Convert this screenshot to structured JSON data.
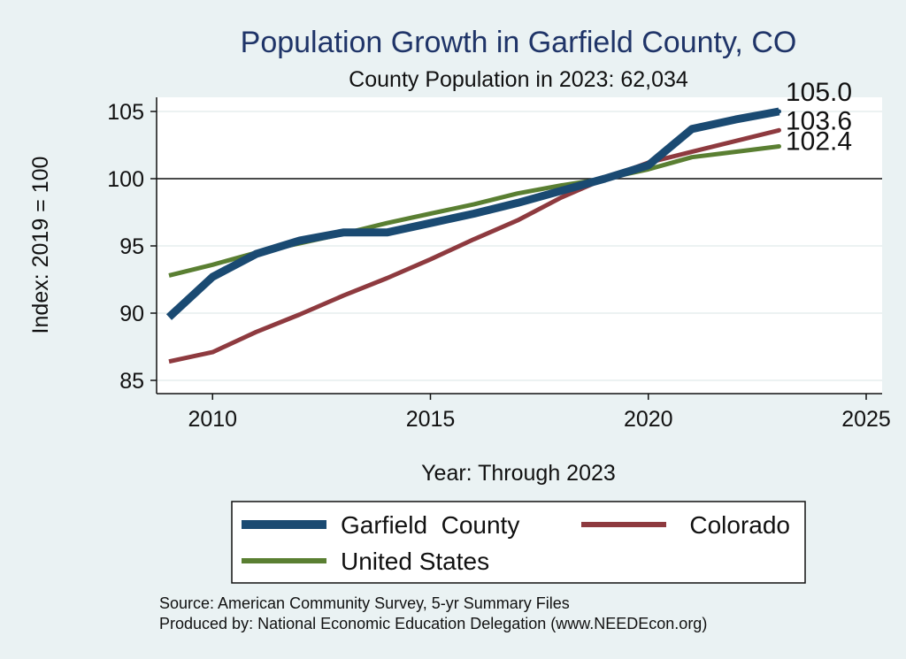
{
  "chart_data": {
    "type": "line",
    "title": "Population Growth in Garfield County, CO",
    "subtitle": "County Population in 2023: 62,034",
    "xlabel": "Year: Through 2023",
    "ylabel": "Index: 2019 = 100",
    "xlim": [
      2009,
      2025
    ],
    "ylim": [
      85,
      105
    ],
    "xticks": [
      2010,
      2015,
      2020,
      2025
    ],
    "yticks": [
      85,
      90,
      95,
      100,
      105
    ],
    "reference_line": 100,
    "grid": true,
    "x": [
      2009,
      2010,
      2011,
      2012,
      2013,
      2014,
      2015,
      2016,
      2017,
      2018,
      2019,
      2020,
      2021,
      2022,
      2023
    ],
    "series": [
      {
        "name": "Garfield  County",
        "color": "#1a4a72",
        "values": [
          89.7,
          92.7,
          94.4,
          95.4,
          96.0,
          96.0,
          96.7,
          97.4,
          98.2,
          99.1,
          100.0,
          101.0,
          103.7,
          104.4,
          105.0
        ],
        "end_label": "105.0"
      },
      {
        "name": "Colorado",
        "color": "#8e3a3f",
        "values": [
          86.4,
          87.1,
          88.6,
          89.9,
          91.3,
          92.6,
          94.0,
          95.5,
          96.9,
          98.6,
          100.0,
          101.2,
          102.0,
          102.8,
          103.6
        ],
        "end_label": "103.6"
      },
      {
        "name": "United States",
        "color": "#5a7f32",
        "values": [
          92.8,
          93.6,
          94.5,
          95.2,
          95.9,
          96.7,
          97.4,
          98.1,
          98.9,
          99.5,
          100.0,
          100.7,
          101.6,
          102.0,
          102.4
        ],
        "end_label": "102.4"
      }
    ],
    "legend_position": "bottom",
    "notes": [
      "Source: American Community Survey, 5-yr Summary Files",
      "Produced by: National Economic Education Delegation (www.NEEDEcon.org)"
    ]
  }
}
